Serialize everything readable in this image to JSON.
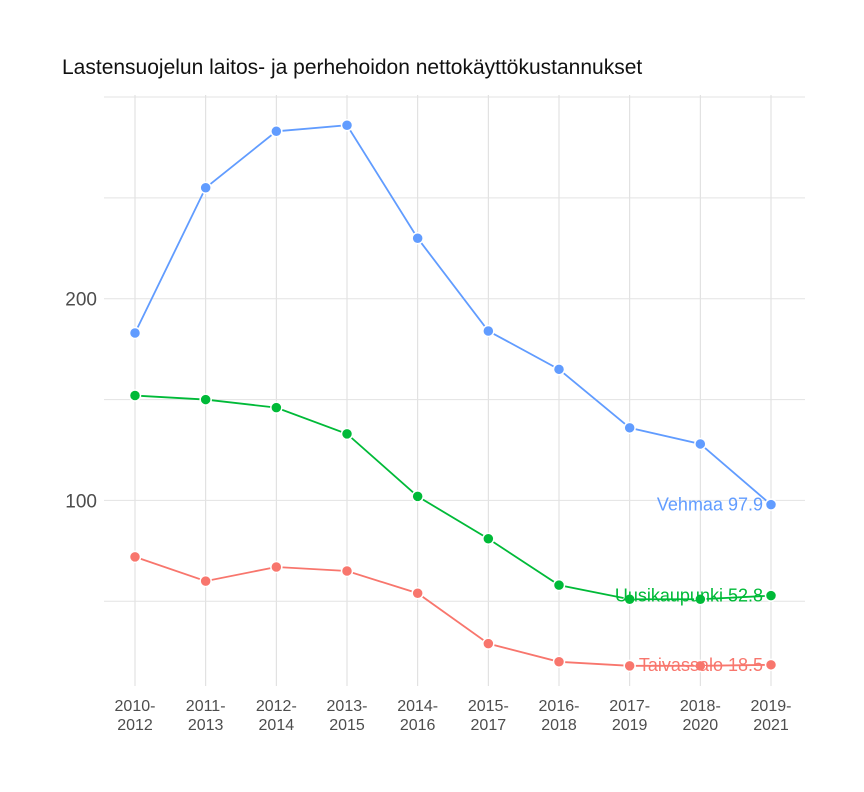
{
  "chart_data": {
    "type": "line",
    "title": "Lastensuojelun laitos- ja perhehoidon nettokäyttökustannukset",
    "xlabel": "",
    "ylabel": "",
    "categories": [
      "2010-\n2012",
      "2011-\n2013",
      "2012-\n2014",
      "2013-\n2015",
      "2014-\n2016",
      "2015-\n2017",
      "2016-\n2018",
      "2017-\n2019",
      "2018-\n2020",
      "2019-\n2021"
    ],
    "y_ticks": [
      100,
      200
    ],
    "ylim": [
      8,
      301
    ],
    "grid": true,
    "legend": "none",
    "series": [
      {
        "name": "Vehmaa",
        "color": "#619CFF",
        "values": [
          183,
          255,
          283,
          286,
          230,
          184,
          165,
          136,
          128,
          97.9
        ],
        "end_label": "Vehmaa 97.9"
      },
      {
        "name": "Uusikaupunki",
        "color": "#00BA38",
        "values": [
          152,
          150,
          146,
          133,
          102,
          81,
          58,
          51,
          51,
          52.8
        ],
        "end_label": "Uusikaupunki 52.8"
      },
      {
        "name": "Taivassalo",
        "color": "#F8766D",
        "values": [
          72,
          60,
          67,
          65,
          54,
          29,
          20,
          18,
          18,
          18.5
        ],
        "end_label": "Taivassalo 18.5"
      }
    ]
  }
}
